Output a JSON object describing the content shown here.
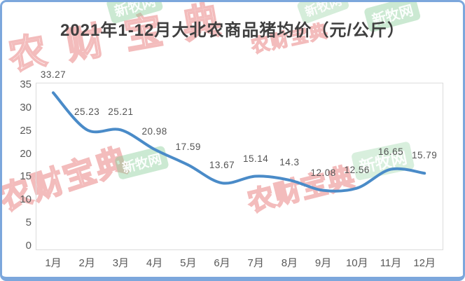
{
  "title": "2021年1-12月大北农商品猪均价（元/公斤）",
  "watermarks": {
    "red_text": "农财宝典",
    "green_text": "新牧网"
  },
  "chart_data": {
    "type": "line",
    "title": "2021年1-12月大北农商品猪均价（元/公斤）",
    "categories": [
      "1月",
      "2月",
      "3月",
      "4月",
      "5月",
      "6月",
      "7月",
      "8月",
      "9月",
      "10月",
      "11月",
      "12月"
    ],
    "values": [
      33.27,
      25.23,
      25.21,
      20.98,
      17.59,
      13.67,
      15.14,
      14.3,
      12.08,
      12.56,
      16.65,
      15.79
    ],
    "value_labels": [
      "33.27",
      "25.23",
      "25.21",
      "20.98",
      "17.59",
      "13.67",
      "15.14",
      "14.3",
      "12.08",
      "12.56",
      "16.65",
      "15.79"
    ],
    "xlabel": "",
    "ylabel": "",
    "ylim": [
      0,
      35
    ],
    "y_ticks": [
      0,
      5,
      10,
      15,
      20,
      25,
      30,
      35
    ],
    "grid": false,
    "legend": "none",
    "line_color": "#4a8bc8",
    "smooth": true
  }
}
